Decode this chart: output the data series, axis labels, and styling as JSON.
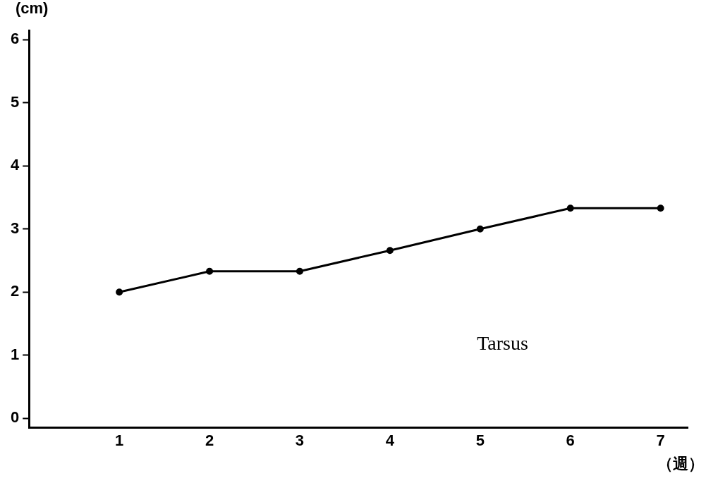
{
  "chart_data": {
    "type": "line",
    "xlabel": "（週）",
    "ylabel": "(cm)",
    "x": [
      1,
      2,
      3,
      4,
      5,
      6,
      7
    ],
    "series": [
      {
        "color": "#000000",
        "values": [
          2,
          2.33,
          2.33,
          2.66,
          3,
          3.33,
          3.33
        ]
      }
    ],
    "xlim": [
      0,
      7.3
    ],
    "xticks": [
      1,
      2,
      3,
      4,
      5,
      6,
      7
    ],
    "ylim": [
      -0.15,
      6.15
    ],
    "yticks": [
      0,
      1,
      2,
      3,
      4,
      5,
      6
    ],
    "grid": false,
    "legend": false,
    "marker": "circle",
    "line_style": "solid",
    "annotations": [
      "Tarsus"
    ]
  }
}
